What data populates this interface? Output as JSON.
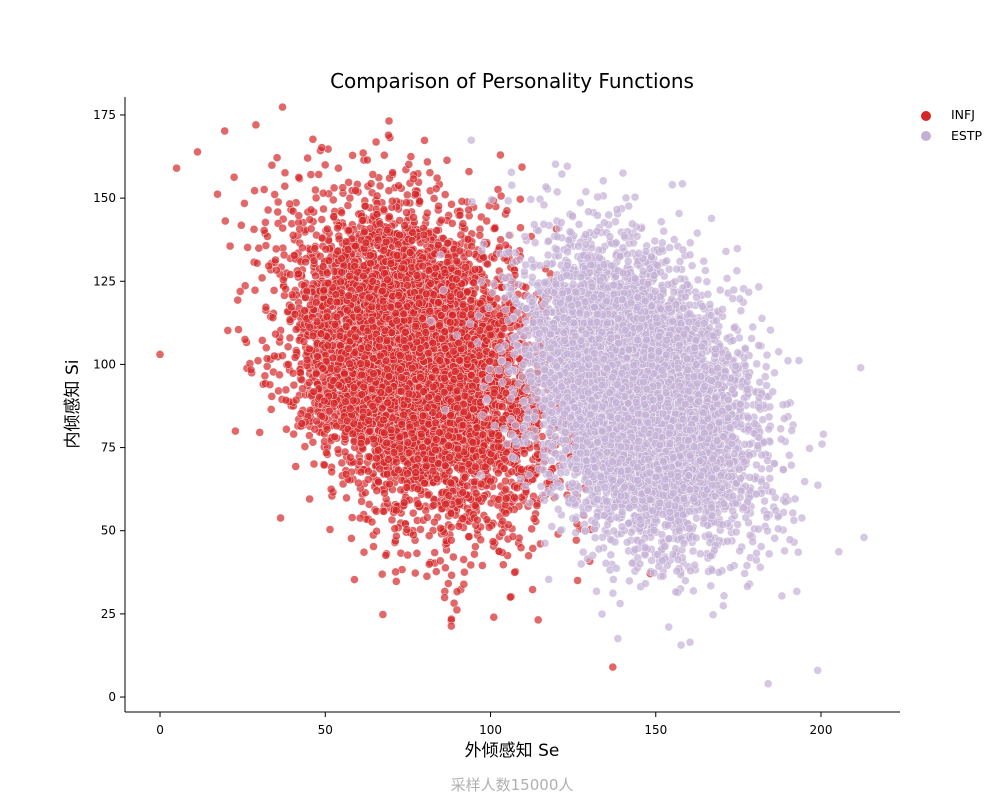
{
  "chart_data": {
    "type": "scatter",
    "title": "Comparison of Personality Functions",
    "xlabel": "外倾感知 Se",
    "ylabel": "内倾感知 Si",
    "caption": "采样人数15000人",
    "xlim": [
      -10.6,
      223.9
    ],
    "ylim": [
      -4.5,
      180.4
    ],
    "xticks": [
      0,
      50,
      100,
      150,
      200
    ],
    "yticks": [
      0,
      25,
      50,
      75,
      100,
      125,
      150,
      175
    ],
    "grid": false,
    "legend_position": "top-right-outside",
    "series": [
      {
        "name": "INFJ",
        "color": "#d62728",
        "n": 7500,
        "distribution": {
          "mean_x": 78,
          "sd_x": 18,
          "mean_y": 100,
          "sd_y": 22,
          "corr": -0.3
        },
        "notable_points": [
          [
            0,
            103
          ],
          [
            5,
            159
          ],
          [
            29,
            172
          ],
          [
            137,
            9
          ],
          [
            101,
            24
          ]
        ]
      },
      {
        "name": "ESTP",
        "color": "#c5b0d5",
        "n": 7500,
        "distribution": {
          "mean_x": 145,
          "sd_x": 16,
          "mean_y": 90,
          "sd_y": 21,
          "corr": -0.35
        },
        "notable_points": [
          [
            155,
            154
          ],
          [
            184,
            4
          ],
          [
            199,
            8
          ],
          [
            212,
            99
          ],
          [
            213,
            48
          ]
        ]
      }
    ]
  }
}
